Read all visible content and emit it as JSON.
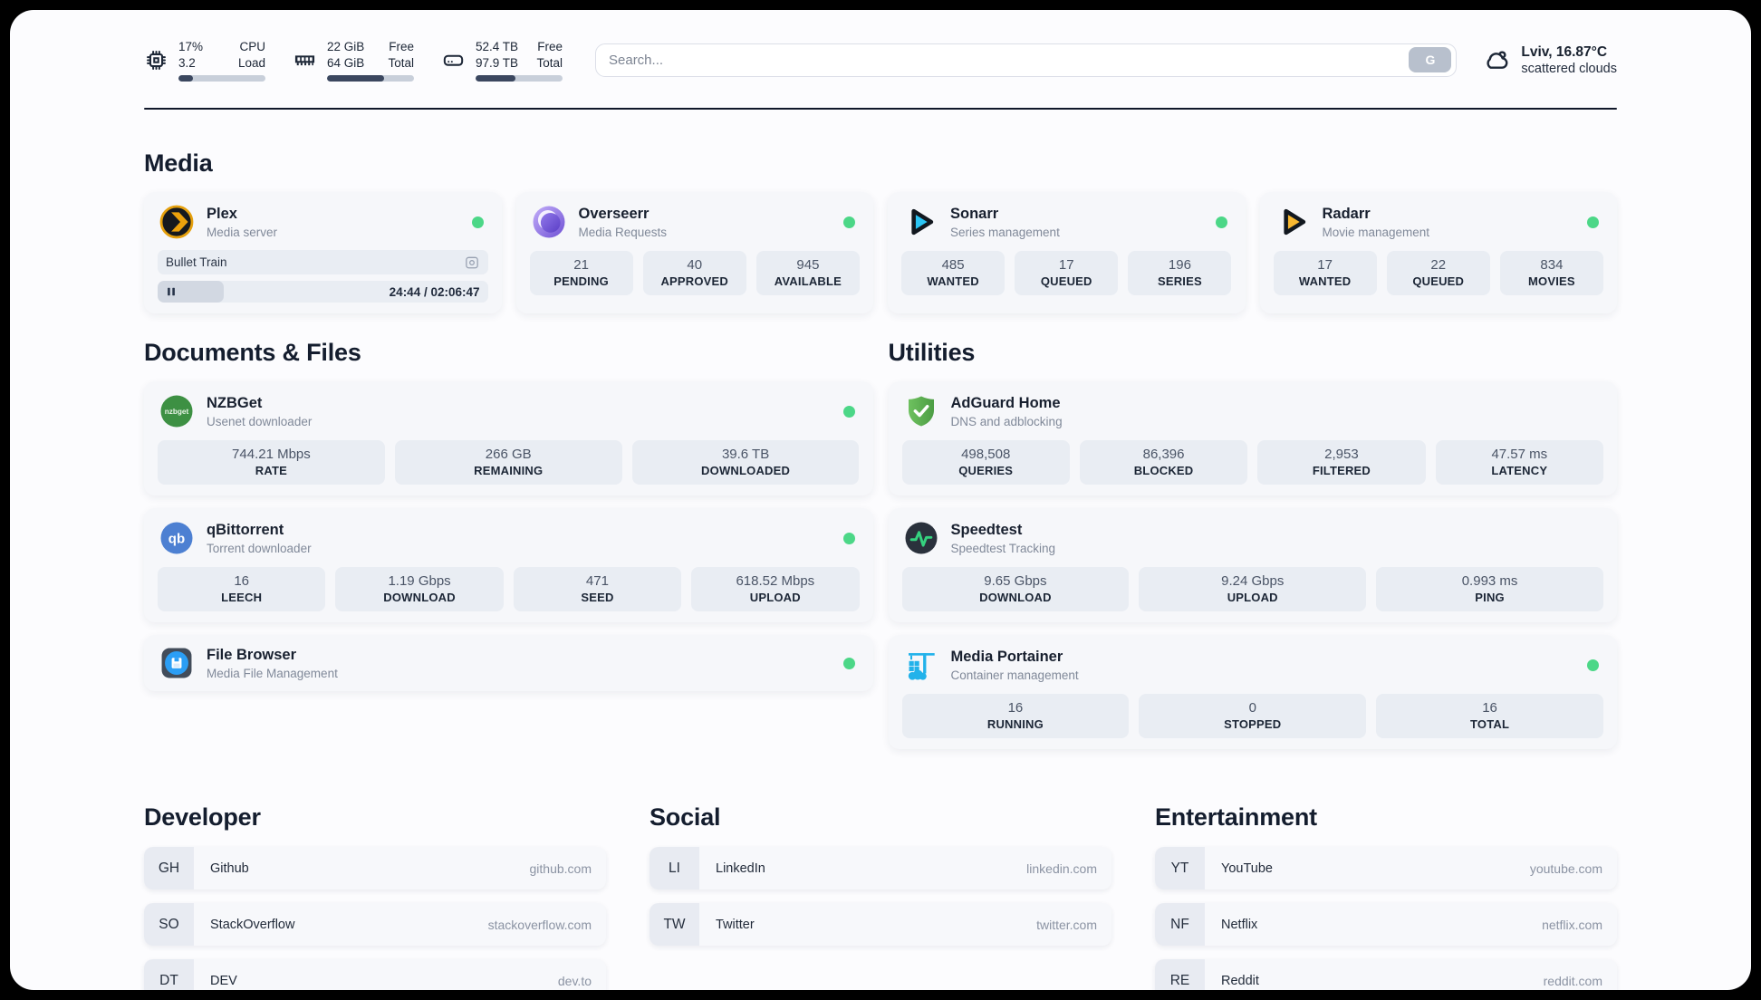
{
  "topbar": {
    "cpu": {
      "value_top": "17%",
      "value_bottom": "3.2",
      "label_top": "CPU",
      "label_bottom": "Load",
      "progress_pct": 17
    },
    "ram": {
      "value_top": "22 GiB",
      "value_bottom": "64 GiB",
      "label_top": "Free",
      "label_bottom": "Total",
      "progress_pct": 66
    },
    "disk": {
      "value_top": "52.4 TB",
      "value_bottom": "97.9 TB",
      "label_top": "Free",
      "label_bottom": "Total",
      "progress_pct": 46
    },
    "search": {
      "placeholder": "Search...",
      "button_label": "G"
    },
    "weather": {
      "location_temp": "Lviv, 16.87°C",
      "condition": "scattered clouds"
    }
  },
  "media": {
    "heading": "Media",
    "plex": {
      "name": "Plex",
      "desc": "Media server",
      "status": "online",
      "now_playing": "Bullet Train",
      "elapsed_total": "24:44 / 02:06:47",
      "progress_pct": 20
    },
    "overseerr": {
      "name": "Overseerr",
      "desc": "Media Requests",
      "status": "online",
      "stats": [
        {
          "value": "21",
          "label": "PENDING"
        },
        {
          "value": "40",
          "label": "APPROVED"
        },
        {
          "value": "945",
          "label": "AVAILABLE"
        }
      ]
    },
    "sonarr": {
      "name": "Sonarr",
      "desc": "Series management",
      "status": "online",
      "stats": [
        {
          "value": "485",
          "label": "WANTED"
        },
        {
          "value": "17",
          "label": "QUEUED"
        },
        {
          "value": "196",
          "label": "SERIES"
        }
      ]
    },
    "radarr": {
      "name": "Radarr",
      "desc": "Movie management",
      "status": "online",
      "stats": [
        {
          "value": "17",
          "label": "WANTED"
        },
        {
          "value": "22",
          "label": "QUEUED"
        },
        {
          "value": "834",
          "label": "MOVIES"
        }
      ]
    }
  },
  "documents": {
    "heading": "Documents & Files",
    "nzbget": {
      "name": "NZBGet",
      "desc": "Usenet downloader",
      "status": "online",
      "icon_text": "nzbget",
      "stats": [
        {
          "value": "744.21 Mbps",
          "label": "RATE"
        },
        {
          "value": "266 GB",
          "label": "REMAINING"
        },
        {
          "value": "39.6 TB",
          "label": "DOWNLOADED"
        }
      ]
    },
    "qbittorrent": {
      "name": "qBittorrent",
      "desc": "Torrent downloader",
      "status": "online",
      "icon_text": "qb",
      "stats": [
        {
          "value": "16",
          "label": "LEECH"
        },
        {
          "value": "1.19 Gbps",
          "label": "DOWNLOAD"
        },
        {
          "value": "471",
          "label": "SEED"
        },
        {
          "value": "618.52 Mbps",
          "label": "UPLOAD"
        }
      ]
    },
    "filebrowser": {
      "name": "File Browser",
      "desc": "Media File Management",
      "status": "online"
    }
  },
  "utilities": {
    "heading": "Utilities",
    "adguard": {
      "name": "AdGuard Home",
      "desc": "DNS and adblocking",
      "stats": [
        {
          "value": "498,508",
          "label": "QUERIES"
        },
        {
          "value": "86,396",
          "label": "BLOCKED"
        },
        {
          "value": "2,953",
          "label": "FILTERED"
        },
        {
          "value": "47.57 ms",
          "label": "LATENCY"
        }
      ]
    },
    "speedtest": {
      "name": "Speedtest",
      "desc": "Speedtest Tracking",
      "stats": [
        {
          "value": "9.65 Gbps",
          "label": "DOWNLOAD"
        },
        {
          "value": "9.24 Gbps",
          "label": "UPLOAD"
        },
        {
          "value": "0.993 ms",
          "label": "PING"
        }
      ]
    },
    "portainer": {
      "name": "Media Portainer",
      "desc": "Container management",
      "status": "online",
      "stats": [
        {
          "value": "16",
          "label": "RUNNING"
        },
        {
          "value": "0",
          "label": "STOPPED"
        },
        {
          "value": "16",
          "label": "TOTAL"
        }
      ]
    }
  },
  "bookmarks": [
    {
      "heading": "Developer",
      "items": [
        {
          "abbr": "GH",
          "name": "Github",
          "url": "github.com"
        },
        {
          "abbr": "SO",
          "name": "StackOverflow",
          "url": "stackoverflow.com"
        },
        {
          "abbr": "DT",
          "name": "DEV",
          "url": "dev.to"
        }
      ]
    },
    {
      "heading": "Social",
      "items": [
        {
          "abbr": "LI",
          "name": "LinkedIn",
          "url": "linkedin.com"
        },
        {
          "abbr": "TW",
          "name": "Twitter",
          "url": "twitter.com"
        }
      ]
    },
    {
      "heading": "Entertainment",
      "items": [
        {
          "abbr": "YT",
          "name": "YouTube",
          "url": "youtube.com"
        },
        {
          "abbr": "NF",
          "name": "Netflix",
          "url": "netflix.com"
        },
        {
          "abbr": "RE",
          "name": "Reddit",
          "url": "reddit.com"
        }
      ]
    }
  ],
  "colors": {
    "status_online": "#4cd787",
    "plex_accent": "#e5a00d",
    "sonarr_accent": "#2bc5f4",
    "radarr_accent": "#f8b830",
    "nzbget_accent": "#3d9043",
    "qbittorrent_accent": "#4d80d2",
    "adguard_accent": "#57ab4c",
    "speedtest_accent": "#35d27f",
    "portainer_accent": "#22b2ea",
    "filebrowser_accent": "#2b9ef5"
  }
}
